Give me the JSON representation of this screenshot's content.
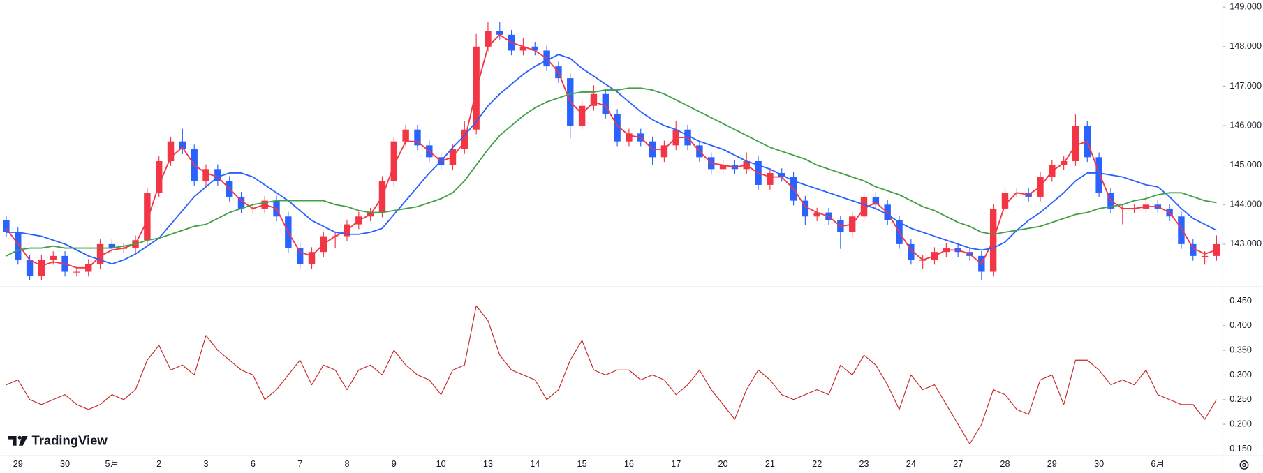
{
  "watermark": "TradingView",
  "chart_data": [
    {
      "type": "candlestick",
      "categories": [
        null,
        "29",
        null,
        null,
        null,
        "30",
        null,
        null,
        null,
        "5月",
        null,
        null,
        null,
        "2",
        null,
        null,
        null,
        "3",
        null,
        null,
        null,
        "6",
        null,
        null,
        null,
        "7",
        null,
        null,
        null,
        "8",
        null,
        null,
        null,
        "9",
        null,
        null,
        null,
        "10",
        null,
        null,
        null,
        "13",
        null,
        null,
        null,
        "14",
        null,
        null,
        null,
        "15",
        null,
        null,
        null,
        "16",
        null,
        null,
        null,
        "17",
        null,
        null,
        null,
        "20",
        null,
        null,
        null,
        "21",
        null,
        null,
        null,
        "22",
        null,
        null,
        null,
        "23",
        null,
        null,
        null,
        "24",
        null,
        null,
        null,
        "27",
        null,
        null,
        null,
        "28",
        null,
        null,
        null,
        "29",
        null,
        null,
        null,
        "30",
        null,
        null,
        null,
        null,
        "6月",
        null,
        null,
        null,
        null,
        null
      ],
      "open": [
        143.6,
        143.3,
        142.6,
        142.2,
        142.6,
        142.7,
        142.3,
        142.3,
        142.5,
        143.0,
        142.9,
        142.9,
        143.1,
        144.3,
        145.1,
        145.6,
        145.4,
        144.6,
        144.9,
        144.6,
        144.2,
        143.9,
        143.9,
        144.1,
        143.7,
        142.9,
        142.5,
        142.8,
        143.2,
        143.2,
        143.5,
        143.7,
        143.8,
        144.6,
        145.6,
        145.9,
        145.5,
        145.2,
        145.0,
        145.4,
        145.9,
        148.0,
        148.4,
        148.3,
        147.9,
        148.0,
        147.9,
        147.5,
        147.2,
        146.0,
        146.5,
        146.8,
        146.3,
        145.6,
        145.8,
        145.6,
        145.2,
        145.5,
        145.9,
        145.5,
        145.2,
        144.9,
        145.0,
        144.9,
        145.1,
        144.5,
        144.8,
        144.7,
        144.1,
        143.7,
        143.8,
        143.6,
        143.3,
        143.7,
        144.2,
        144.0,
        143.6,
        143.0,
        142.6,
        142.6,
        142.8,
        142.9,
        142.8,
        142.7,
        142.3,
        143.9,
        144.3,
        144.3,
        144.2,
        144.7,
        145.0,
        145.1,
        146.0,
        145.2,
        144.3,
        143.9,
        143.9,
        143.9,
        144.0,
        143.9,
        143.7,
        143.0,
        142.7,
        142.7
      ],
      "high": [
        143.72,
        143.42,
        142.72,
        142.72,
        142.82,
        142.82,
        142.42,
        142.62,
        143.12,
        143.12,
        143.02,
        143.22,
        144.42,
        145.22,
        145.72,
        145.92,
        145.52,
        145.02,
        145.02,
        144.72,
        144.32,
        144.02,
        144.22,
        144.22,
        143.82,
        143.02,
        142.92,
        143.32,
        143.32,
        143.62,
        143.82,
        143.92,
        144.72,
        145.72,
        146.02,
        146.02,
        145.62,
        145.32,
        145.52,
        146.12,
        148.32,
        148.62,
        148.62,
        148.42,
        148.22,
        148.12,
        148.02,
        147.62,
        147.32,
        146.62,
        147.02,
        146.92,
        146.42,
        145.92,
        145.92,
        145.72,
        145.62,
        146.12,
        146.02,
        145.62,
        145.32,
        145.12,
        145.12,
        145.32,
        145.22,
        144.92,
        144.92,
        144.82,
        144.22,
        143.92,
        143.92,
        143.72,
        143.82,
        144.32,
        144.32,
        144.12,
        143.72,
        143.12,
        142.72,
        142.92,
        143.02,
        143.02,
        142.92,
        142.82,
        144.02,
        144.42,
        144.42,
        144.42,
        144.82,
        145.12,
        145.22,
        146.28,
        146.12,
        145.32,
        144.42,
        144.02,
        144.02,
        144.42,
        144.12,
        144.02,
        143.82,
        143.12,
        142.82,
        143.22
      ],
      "low": [
        143.18,
        142.48,
        142.08,
        142.08,
        142.48,
        142.18,
        142.18,
        142.18,
        142.38,
        142.78,
        142.78,
        142.78,
        142.98,
        144.18,
        144.98,
        145.28,
        144.48,
        144.48,
        144.48,
        144.08,
        143.78,
        143.78,
        143.78,
        143.58,
        142.78,
        142.38,
        142.38,
        142.68,
        142.9,
        143.08,
        143.38,
        143.58,
        143.68,
        144.48,
        145.48,
        145.38,
        145.08,
        144.88,
        144.88,
        145.28,
        145.78,
        147.88,
        148.18,
        147.78,
        147.78,
        147.78,
        147.38,
        147.08,
        145.68,
        145.88,
        146.38,
        146.18,
        145.48,
        145.48,
        145.48,
        145.0,
        145.08,
        145.38,
        145.38,
        145.08,
        144.78,
        144.78,
        144.78,
        144.78,
        144.38,
        144.38,
        144.58,
        143.98,
        143.48,
        143.58,
        143.48,
        142.88,
        143.18,
        143.58,
        143.88,
        143.48,
        142.88,
        142.48,
        142.38,
        142.48,
        142.68,
        142.68,
        142.58,
        142.1,
        142.18,
        143.78,
        144.18,
        144.08,
        144.08,
        144.58,
        144.88,
        144.98,
        145.08,
        144.18,
        143.78,
        143.5,
        143.78,
        143.78,
        143.78,
        143.58,
        142.88,
        142.58,
        142.48,
        142.58
      ],
      "close": [
        143.3,
        142.6,
        142.2,
        142.6,
        142.7,
        142.3,
        142.3,
        142.5,
        143.0,
        142.9,
        142.9,
        143.1,
        144.3,
        145.1,
        145.6,
        145.4,
        144.6,
        144.9,
        144.6,
        144.2,
        143.9,
        143.9,
        144.1,
        143.7,
        142.9,
        142.5,
        142.8,
        143.2,
        143.2,
        143.5,
        143.7,
        143.8,
        144.6,
        145.6,
        145.9,
        145.5,
        145.2,
        145.0,
        145.4,
        145.9,
        148.0,
        148.4,
        148.3,
        147.9,
        148.0,
        147.9,
        147.5,
        147.2,
        146.0,
        146.5,
        146.8,
        146.3,
        145.6,
        145.8,
        145.6,
        145.2,
        145.5,
        145.9,
        145.5,
        145.2,
        144.9,
        145.0,
        144.9,
        145.1,
        144.5,
        144.8,
        144.7,
        144.1,
        143.7,
        143.8,
        143.6,
        143.3,
        143.7,
        144.2,
        144.0,
        143.6,
        143.0,
        142.6,
        142.6,
        142.8,
        142.9,
        142.8,
        142.7,
        142.3,
        143.9,
        144.3,
        144.3,
        144.2,
        144.7,
        145.0,
        145.1,
        146.0,
        145.2,
        144.3,
        143.9,
        143.9,
        143.9,
        144.0,
        143.9,
        143.7,
        143.0,
        142.7,
        142.7,
        143.0
      ],
      "up_color": "#f23645",
      "down_color": "#2962ff",
      "series": [
        {
          "color": "#f23645",
          "values": [
            143.4,
            143.0,
            142.6,
            142.45,
            142.55,
            142.5,
            142.4,
            142.4,
            142.7,
            142.85,
            142.9,
            143.0,
            143.6,
            144.5,
            145.2,
            145.45,
            145.0,
            144.8,
            144.7,
            144.4,
            144.1,
            143.9,
            144.0,
            143.9,
            143.3,
            142.8,
            142.7,
            143.0,
            143.2,
            143.35,
            143.6,
            143.75,
            144.2,
            145.0,
            145.6,
            145.6,
            145.35,
            145.1,
            145.2,
            145.6,
            146.9,
            148.0,
            148.3,
            148.1,
            148.0,
            147.9,
            147.7,
            147.35,
            146.6,
            146.3,
            146.6,
            146.5,
            146.0,
            145.75,
            145.7,
            145.4,
            145.4,
            145.7,
            145.7,
            145.35,
            145.05,
            145.0,
            144.95,
            145.0,
            144.8,
            144.7,
            144.7,
            144.4,
            143.95,
            143.8,
            143.7,
            143.45,
            143.5,
            143.9,
            144.05,
            143.8,
            143.3,
            142.85,
            142.6,
            142.7,
            142.85,
            142.85,
            142.75,
            142.5,
            143.1,
            144.0,
            144.3,
            144.25,
            144.45,
            144.85,
            145.05,
            145.5,
            145.6,
            144.8,
            144.1,
            143.9,
            143.9,
            143.95,
            143.95,
            143.8,
            143.4,
            142.9,
            142.75,
            142.85
          ]
        },
        {
          "color": "#2962ff",
          "values": [
            143.3,
            143.3,
            143.25,
            143.2,
            143.1,
            143.0,
            142.85,
            142.7,
            142.6,
            142.5,
            142.6,
            142.75,
            142.95,
            143.15,
            143.5,
            143.85,
            144.2,
            144.45,
            144.7,
            144.8,
            144.8,
            144.7,
            144.5,
            144.3,
            144.1,
            143.85,
            143.6,
            143.45,
            143.3,
            143.25,
            143.25,
            143.3,
            143.4,
            143.75,
            144.1,
            144.45,
            144.8,
            145.1,
            145.45,
            145.75,
            146.1,
            146.5,
            146.8,
            147.05,
            147.3,
            147.5,
            147.65,
            147.8,
            147.7,
            147.45,
            147.25,
            147.05,
            146.85,
            146.6,
            146.35,
            146.15,
            146.0,
            145.9,
            145.75,
            145.6,
            145.5,
            145.4,
            145.25,
            145.1,
            145.0,
            144.9,
            144.75,
            144.6,
            144.5,
            144.4,
            144.3,
            144.2,
            144.1,
            144.0,
            143.9,
            143.75,
            143.55,
            143.4,
            143.3,
            143.2,
            143.1,
            143.0,
            142.9,
            142.85,
            142.9,
            143.05,
            143.35,
            143.6,
            143.8,
            144.05,
            144.3,
            144.6,
            144.8,
            144.8,
            144.75,
            144.7,
            144.6,
            144.5,
            144.45,
            144.2,
            143.9,
            143.65,
            143.5,
            143.35
          ]
        },
        {
          "color": "#43a047",
          "values": [
            142.7,
            142.85,
            142.9,
            142.9,
            142.95,
            142.9,
            142.9,
            142.9,
            142.9,
            142.9,
            142.95,
            143.0,
            143.1,
            143.15,
            143.25,
            143.35,
            143.45,
            143.5,
            143.65,
            143.8,
            143.9,
            144.0,
            144.05,
            144.1,
            144.1,
            144.1,
            144.1,
            144.1,
            144.0,
            143.95,
            143.85,
            143.8,
            143.8,
            143.85,
            143.9,
            143.95,
            144.05,
            144.15,
            144.3,
            144.6,
            145.0,
            145.4,
            145.75,
            146.0,
            146.25,
            146.45,
            146.6,
            146.7,
            146.8,
            146.85,
            146.85,
            146.9,
            146.9,
            146.95,
            146.95,
            146.9,
            146.8,
            146.65,
            146.5,
            146.35,
            146.2,
            146.05,
            145.9,
            145.75,
            145.6,
            145.45,
            145.35,
            145.25,
            145.15,
            145.0,
            144.9,
            144.8,
            144.7,
            144.6,
            144.45,
            144.35,
            144.25,
            144.1,
            143.95,
            143.85,
            143.7,
            143.55,
            143.45,
            143.3,
            143.25,
            143.3,
            143.35,
            143.4,
            143.45,
            143.55,
            143.65,
            143.75,
            143.8,
            143.9,
            143.95,
            144.0,
            144.1,
            144.15,
            144.25,
            144.3,
            144.3,
            144.2,
            144.1,
            144.05
          ]
        }
      ],
      "ylim": [
        141.95,
        149.18
      ],
      "yticks": [
        {
          "value": 149,
          "label": "149.000"
        },
        {
          "value": 148,
          "label": "148.000"
        },
        {
          "value": 147,
          "label": "147.000"
        },
        {
          "value": 146,
          "label": "146.000"
        },
        {
          "value": 145,
          "label": "145.000"
        },
        {
          "value": 144,
          "label": "144.000"
        },
        {
          "value": 143,
          "label": "143.000"
        }
      ]
    },
    {
      "type": "line",
      "color": "#c62828",
      "values": [
        0.28,
        0.29,
        0.25,
        0.24,
        0.25,
        0.26,
        0.24,
        0.23,
        0.24,
        0.26,
        0.25,
        0.27,
        0.33,
        0.36,
        0.31,
        0.32,
        0.3,
        0.38,
        0.35,
        0.33,
        0.31,
        0.3,
        0.25,
        0.27,
        0.3,
        0.33,
        0.28,
        0.32,
        0.31,
        0.27,
        0.31,
        0.32,
        0.3,
        0.35,
        0.32,
        0.3,
        0.29,
        0.26,
        0.31,
        0.32,
        0.44,
        0.41,
        0.34,
        0.31,
        0.3,
        0.29,
        0.25,
        0.27,
        0.33,
        0.37,
        0.31,
        0.3,
        0.31,
        0.31,
        0.29,
        0.3,
        0.29,
        0.26,
        0.28,
        0.31,
        0.27,
        0.24,
        0.21,
        0.27,
        0.31,
        0.29,
        0.26,
        0.25,
        0.26,
        0.27,
        0.26,
        0.32,
        0.3,
        0.34,
        0.32,
        0.28,
        0.23,
        0.3,
        0.27,
        0.28,
        0.24,
        0.2,
        0.16,
        0.2,
        0.27,
        0.26,
        0.23,
        0.22,
        0.29,
        0.3,
        0.24,
        0.33,
        0.33,
        0.31,
        0.28,
        0.29,
        0.28,
        0.31,
        0.26,
        0.25,
        0.24,
        0.24,
        0.21,
        0.25
      ],
      "ylim": [
        0.137,
        0.478
      ],
      "yticks": [
        {
          "value": 0.45,
          "label": "0.450"
        },
        {
          "value": 0.4,
          "label": "0.400"
        },
        {
          "value": 0.35,
          "label": "0.350"
        },
        {
          "value": 0.3,
          "label": "0.300"
        },
        {
          "value": 0.25,
          "label": "0.250"
        },
        {
          "value": 0.2,
          "label": "0.200"
        },
        {
          "value": 0.15,
          "label": "0.150"
        }
      ]
    }
  ]
}
